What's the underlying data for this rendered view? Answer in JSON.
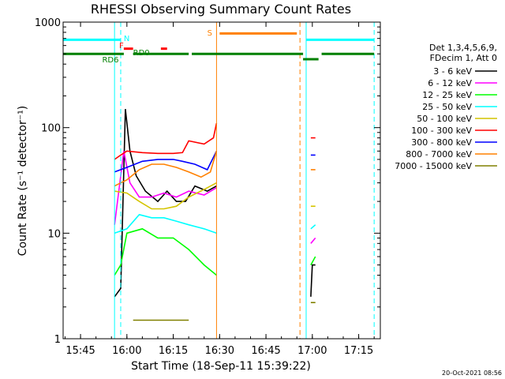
{
  "chart_data": {
    "type": "line",
    "title": "RHESSI Observing Summary Count Rates",
    "xlabel": "Start Time (18-Sep-11 15:39:22)",
    "ylabel": "Count Rate (s⁻¹ detector⁻¹)",
    "yscale": "log",
    "ylim": [
      1,
      1000
    ],
    "xlim": [
      "15:39:22",
      "17:22"
    ],
    "x_ticks": [
      "15:45",
      "16:00",
      "16:15",
      "16:30",
      "16:45",
      "17:00",
      "17:15"
    ],
    "y_ticks": [
      "1",
      "10",
      "100",
      "1000"
    ],
    "legend_header": [
      "Det 1,3,4,5,6,9,",
      "FDecim 1, Att 0"
    ],
    "timestamp": "20-Oct-2021 08:56",
    "series": [
      {
        "name": "3 - 6 keV",
        "color": "#000000",
        "segments": [
          [
            [
              "15:56",
              2.5
            ],
            [
              "15:58",
              3
            ],
            [
              "15:59:30",
              150
            ],
            [
              "16:01",
              60
            ],
            [
              "16:03",
              35
            ],
            [
              "16:06",
              25
            ],
            [
              "16:10",
              20
            ],
            [
              "16:13",
              25
            ],
            [
              "16:16",
              20
            ],
            [
              "16:19",
              20
            ],
            [
              "16:22",
              28
            ],
            [
              "16:26",
              25
            ],
            [
              "16:29",
              28
            ]
          ],
          [
            [
              "16:59:30",
              2.5
            ],
            [
              "17:00",
              5
            ],
            [
              "17:01",
              5
            ]
          ]
        ]
      },
      {
        "name": "6 - 12 keV",
        "color": "#ff00ff",
        "segments": [
          [
            [
              "15:56",
              12
            ],
            [
              "15:59",
              60
            ],
            [
              "16:01",
              30
            ],
            [
              "16:04",
              22
            ],
            [
              "16:08",
              22
            ],
            [
              "16:12",
              24
            ],
            [
              "16:16",
              22
            ],
            [
              "16:20",
              25
            ],
            [
              "16:25",
              23
            ],
            [
              "16:29",
              27
            ]
          ],
          [
            [
              "16:59:30",
              8
            ],
            [
              "17:01",
              9
            ]
          ]
        ]
      },
      {
        "name": "12 - 25 keV",
        "color": "#00ff00",
        "segments": [
          [
            [
              "15:56",
              4
            ],
            [
              "15:58",
              5
            ],
            [
              "16:00",
              10
            ],
            [
              "16:05",
              11
            ],
            [
              "16:10",
              9
            ],
            [
              "16:15",
              9
            ],
            [
              "16:20",
              7
            ],
            [
              "16:25",
              5
            ],
            [
              "16:29",
              4
            ]
          ],
          [
            [
              "16:59:30",
              5
            ],
            [
              "17:01",
              6
            ]
          ]
        ]
      },
      {
        "name": "25 - 50 keV",
        "color": "#00ffff",
        "segments": [
          [
            [
              "15:56",
              10
            ],
            [
              "16:00",
              11
            ],
            [
              "16:04",
              15
            ],
            [
              "16:08",
              14
            ],
            [
              "16:12",
              14
            ],
            [
              "16:16",
              13
            ],
            [
              "16:20",
              12
            ],
            [
              "16:25",
              11
            ],
            [
              "16:29",
              10
            ]
          ],
          [
            [
              "16:59:30",
              11
            ],
            [
              "17:01",
              12
            ]
          ]
        ]
      },
      {
        "name": "50 - 100 keV",
        "color": "#d4c400",
        "segments": [
          [
            [
              "15:56",
              25
            ],
            [
              "16:00",
              24
            ],
            [
              "16:04",
              20
            ],
            [
              "16:08",
              17
            ],
            [
              "16:12",
              17
            ],
            [
              "16:16",
              18
            ],
            [
              "16:20",
              22
            ],
            [
              "16:25",
              26
            ],
            [
              "16:29",
              30
            ]
          ],
          [
            [
              "16:59:30",
              18
            ],
            [
              "17:01",
              18
            ]
          ]
        ]
      },
      {
        "name": "100 - 300 keV",
        "color": "#ff0000",
        "segments": [
          [
            [
              "15:56",
              50
            ],
            [
              "15:58",
              55
            ],
            [
              "16:00",
              60
            ],
            [
              "16:05",
              58
            ],
            [
              "16:10",
              57
            ],
            [
              "16:15",
              57
            ],
            [
              "16:18",
              58
            ],
            [
              "16:20",
              75
            ],
            [
              "16:25",
              70
            ],
            [
              "16:28",
              80
            ],
            [
              "16:29",
              110
            ]
          ],
          [
            [
              "16:59:30",
              80
            ],
            [
              "17:01",
              80
            ]
          ]
        ]
      },
      {
        "name": "300 - 800 keV",
        "color": "#0000ff",
        "segments": [
          [
            [
              "15:56",
              38
            ],
            [
              "15:58",
              40
            ],
            [
              "16:00",
              42
            ],
            [
              "16:05",
              48
            ],
            [
              "16:10",
              50
            ],
            [
              "16:15",
              50
            ],
            [
              "16:18",
              48
            ],
            [
              "16:22",
              45
            ],
            [
              "16:26",
              40
            ],
            [
              "16:29",
              60
            ]
          ],
          [
            [
              "16:59:30",
              55
            ],
            [
              "17:01",
              55
            ]
          ]
        ]
      },
      {
        "name": "800 - 7000 keV",
        "color": "#ff8000",
        "segments": [
          [
            [
              "15:56",
              28
            ],
            [
              "15:58",
              30
            ],
            [
              "16:00",
              32
            ],
            [
              "16:04",
              40
            ],
            [
              "16:08",
              45
            ],
            [
              "16:12",
              45
            ],
            [
              "16:16",
              42
            ],
            [
              "16:20",
              38
            ],
            [
              "16:24",
              34
            ],
            [
              "16:27",
              38
            ],
            [
              "16:29",
              60
            ]
          ],
          [
            [
              "16:59:30",
              40
            ],
            [
              "17:01",
              40
            ]
          ]
        ]
      },
      {
        "name": "7000 - 15000 keV",
        "color": "#808000",
        "segments": [
          [
            [
              "16:02",
              1.5
            ],
            [
              "16:20",
              1.5
            ]
          ],
          [
            [
              "16:59:30",
              2.2
            ],
            [
              "17:01",
              2.2
            ]
          ]
        ]
      }
    ],
    "annotations": {
      "N": {
        "label": "N",
        "color": "#00ffff",
        "segments": [
          [
            "15:39:22",
            "15:58"
          ],
          [
            "16:58",
            "17:20"
          ]
        ],
        "level": 680
      },
      "S": {
        "label": "S",
        "color": "#ff8000",
        "segments": [
          [
            "16:30",
            "16:55"
          ]
        ],
        "level": 780
      },
      "F": {
        "label": "F",
        "color": "#ff0000",
        "segments": [
          [
            "15:59",
            "16:02"
          ],
          [
            "16:11",
            "16:13"
          ]
        ],
        "level": 560
      },
      "RD0": {
        "label": "RD0",
        "color": "#008000"
      },
      "RD6": {
        "label": "RD6",
        "color": "#008000"
      },
      "rad_line": {
        "color": "#008000",
        "level": 500,
        "segments": [
          [
            "15:39:22",
            "15:59"
          ],
          [
            "16:02",
            "16:20"
          ],
          [
            "16:21",
            "16:57"
          ],
          [
            "17:03",
            "17:20"
          ]
        ]
      },
      "rad_low": {
        "color": "#008000",
        "level": 445,
        "segments": [
          [
            "16:57",
            "17:02"
          ]
        ]
      }
    },
    "vlines": [
      {
        "time": "15:39:22",
        "color": "#00ffff",
        "style": "solid"
      },
      {
        "time": "15:56",
        "color": "#00ffff",
        "style": "solid"
      },
      {
        "time": "15:58",
        "color": "#00ffff",
        "style": "dashed"
      },
      {
        "time": "16:29",
        "color": "#ff8000",
        "style": "solid"
      },
      {
        "time": "16:56",
        "color": "#ff8000",
        "style": "dashed"
      },
      {
        "time": "16:58",
        "color": "#00ffff",
        "style": "solid"
      },
      {
        "time": "17:20",
        "color": "#00ffff",
        "style": "dashed"
      }
    ]
  }
}
